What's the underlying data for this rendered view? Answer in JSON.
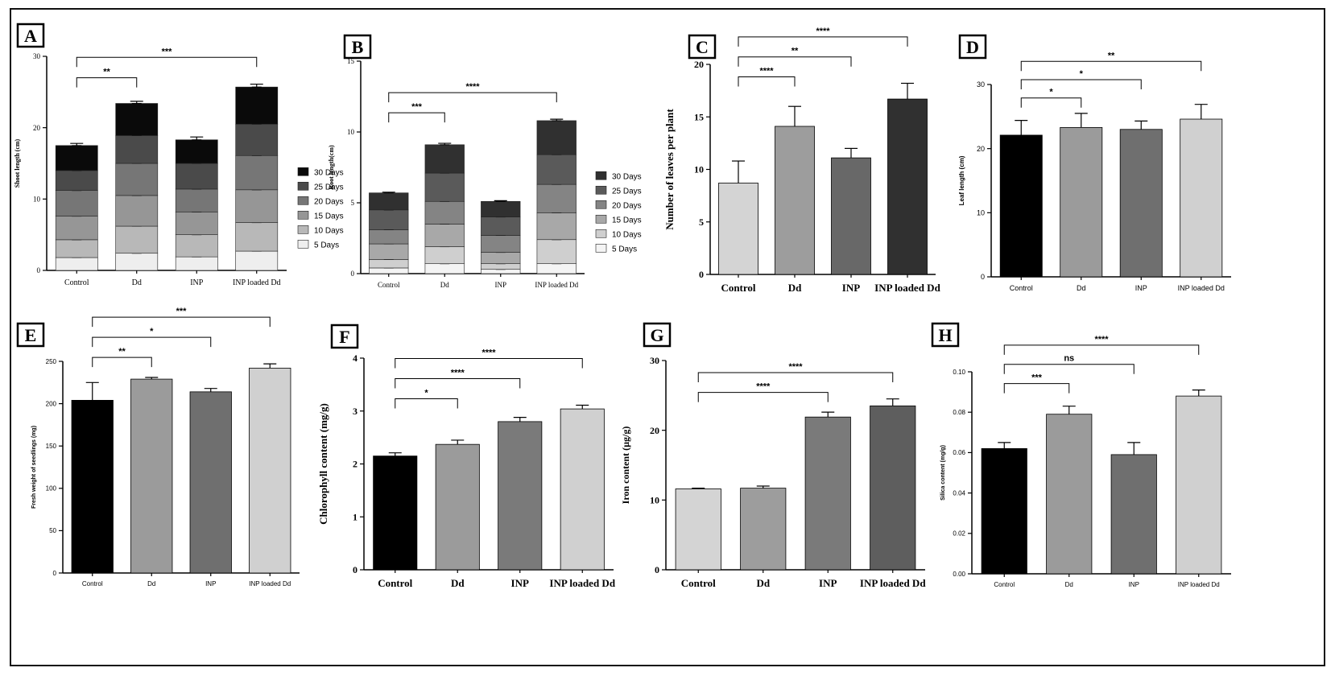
{
  "colors": {
    "black": "#000000",
    "dark": "#2b2b2b",
    "mid": "#6f6f6f",
    "light": "#d4d4d4",
    "gray": "#9b9b9b"
  },
  "chart_data": [
    {
      "id": "A",
      "panel_label": "A",
      "type": "stacked-bar",
      "ylabel": "Shoot length (cm)",
      "ylim": [
        0,
        30
      ],
      "yticks": [
        0,
        10,
        20,
        30
      ],
      "categories": [
        "Control",
        "Dd",
        "INP",
        "INP loaded Dd"
      ],
      "legend": "right",
      "series": [
        {
          "name": "5 Days",
          "color": "#eeeeee",
          "values": [
            1.8,
            2.4,
            1.9,
            2.7
          ]
        },
        {
          "name": "10 Days",
          "color": "#b8b8b8",
          "values": [
            2.5,
            3.8,
            3.1,
            4.0
          ]
        },
        {
          "name": "15 Days",
          "color": "#969696",
          "values": [
            3.3,
            4.3,
            3.2,
            4.6
          ]
        },
        {
          "name": "20 Days",
          "color": "#767676",
          "values": [
            3.6,
            4.5,
            3.2,
            4.8
          ]
        },
        {
          "name": "25 Days",
          "color": "#4a4a4a",
          "values": [
            2.8,
            3.9,
            3.6,
            4.4
          ]
        },
        {
          "name": "30 Days",
          "color": "#0a0a0a",
          "values": [
            3.5,
            4.5,
            3.3,
            5.2
          ]
        }
      ],
      "errors": [
        0.3,
        0.3,
        0.4,
        0.4
      ],
      "significance": [
        {
          "from": 0,
          "to": 1,
          "label": "**",
          "level": 1
        },
        {
          "from": 0,
          "to": 3,
          "label": "***",
          "level": 2
        }
      ]
    },
    {
      "id": "B",
      "panel_label": "B",
      "type": "stacked-bar",
      "ylabel": "Root length(cm)",
      "ylim": [
        0,
        15
      ],
      "yticks": [
        0,
        5,
        10,
        15
      ],
      "categories": [
        "Control",
        "Dd",
        "INP",
        "INP loaded Dd"
      ],
      "legend": "right",
      "series": [
        {
          "name": "5 Days",
          "color": "#f4f4f4",
          "values": [
            0.4,
            0.7,
            0.3,
            0.7
          ]
        },
        {
          "name": "10 Days",
          "color": "#cfcfcf",
          "values": [
            0.6,
            1.2,
            0.4,
            1.7
          ]
        },
        {
          "name": "15 Days",
          "color": "#a8a8a8",
          "values": [
            1.1,
            1.6,
            0.8,
            1.9
          ]
        },
        {
          "name": "20 Days",
          "color": "#848484",
          "values": [
            1.0,
            1.6,
            1.2,
            2.0
          ]
        },
        {
          "name": "25 Days",
          "color": "#5a5a5a",
          "values": [
            1.4,
            2.0,
            1.3,
            2.1
          ]
        },
        {
          "name": "30 Days",
          "color": "#303030",
          "values": [
            1.2,
            2.0,
            1.1,
            2.4
          ]
        }
      ],
      "errors": [
        0.05,
        0.1,
        0.05,
        0.1
      ],
      "significance": [
        {
          "from": 0,
          "to": 1,
          "label": "***",
          "level": 1
        },
        {
          "from": 0,
          "to": 3,
          "label": "****",
          "level": 2
        }
      ]
    },
    {
      "id": "C",
      "panel_label": "C",
      "type": "bar",
      "ylabel": "Number of leaves per plant",
      "ylim": [
        0,
        20
      ],
      "yticks": [
        0,
        5,
        10,
        15,
        20
      ],
      "categories": [
        "Control",
        "Dd",
        "INP",
        "INP loaded Dd"
      ],
      "values": [
        8.7,
        14.1,
        11.1,
        16.7
      ],
      "errors": [
        2.1,
        1.9,
        0.9,
        1.5
      ],
      "bar_colors": [
        "#d4d4d4",
        "#9d9d9d",
        "#686868",
        "#303030"
      ],
      "significance": [
        {
          "from": 0,
          "to": 1,
          "label": "****",
          "level": 1
        },
        {
          "from": 0,
          "to": 2,
          "label": "**",
          "level": 2
        },
        {
          "from": 0,
          "to": 3,
          "label": "****",
          "level": 3
        }
      ]
    },
    {
      "id": "D",
      "panel_label": "D",
      "type": "bar",
      "ylabel": "Leaf length (cm)",
      "ylim": [
        0,
        30
      ],
      "yticks": [
        0,
        10,
        20,
        30
      ],
      "categories": [
        "Control",
        "Dd",
        "INP",
        "INP loaded Dd"
      ],
      "values": [
        22.1,
        23.3,
        23.0,
        24.6
      ],
      "errors": [
        2.3,
        2.2,
        1.3,
        2.3
      ],
      "bar_colors": [
        "#000000",
        "#9b9b9b",
        "#6f6f6f",
        "#d0d0d0"
      ],
      "significance": [
        {
          "from": 0,
          "to": 1,
          "label": "*",
          "level": 1
        },
        {
          "from": 0,
          "to": 2,
          "label": "*",
          "level": 2
        },
        {
          "from": 0,
          "to": 3,
          "label": "**",
          "level": 3
        }
      ]
    },
    {
      "id": "E",
      "panel_label": "E",
      "type": "bar",
      "ylabel": "Fresh weight of seedlings (mg)",
      "ylim": [
        0,
        250
      ],
      "yticks": [
        0,
        50,
        100,
        150,
        200,
        250
      ],
      "categories": [
        "Control",
        "Dd",
        "INP",
        "INP loaded Dd"
      ],
      "values": [
        204,
        229,
        214,
        242
      ],
      "errors": [
        21,
        2,
        4,
        5
      ],
      "bar_colors": [
        "#000000",
        "#9b9b9b",
        "#6f6f6f",
        "#d0d0d0"
      ],
      "significance": [
        {
          "from": 0,
          "to": 1,
          "label": "**",
          "level": 1
        },
        {
          "from": 0,
          "to": 2,
          "label": "*",
          "level": 2
        },
        {
          "from": 0,
          "to": 3,
          "label": "***",
          "level": 3
        }
      ]
    },
    {
      "id": "F",
      "panel_label": "F",
      "type": "bar",
      "ylabel": "Chlorophyll content (mg/g)",
      "ylim": [
        0,
        4
      ],
      "yticks": [
        0,
        1,
        2,
        3,
        4
      ],
      "categories": [
        "Control",
        "Dd",
        "INP",
        "INP loaded Dd"
      ],
      "values": [
        2.15,
        2.37,
        2.8,
        3.04
      ],
      "errors": [
        0.06,
        0.08,
        0.08,
        0.07
      ],
      "bar_colors": [
        "#000000",
        "#9b9b9b",
        "#7a7a7a",
        "#d0d0d0"
      ],
      "significance": [
        {
          "from": 0,
          "to": 1,
          "label": "*",
          "level": 1
        },
        {
          "from": 0,
          "to": 2,
          "label": "****",
          "level": 2
        },
        {
          "from": 0,
          "to": 3,
          "label": "****",
          "level": 3
        }
      ]
    },
    {
      "id": "G",
      "panel_label": "G",
      "type": "bar",
      "ylabel": "Iron content (µg/g)",
      "ylim": [
        0,
        30
      ],
      "yticks": [
        0,
        10,
        20,
        30
      ],
      "categories": [
        "Control",
        "Dd",
        "INP",
        "INP loaded Dd"
      ],
      "values": [
        11.6,
        11.7,
        21.9,
        23.5
      ],
      "errors": [
        0.1,
        0.3,
        0.7,
        1.0
      ],
      "bar_colors": [
        "#d4d4d4",
        "#9d9d9d",
        "#7a7a7a",
        "#5e5e5e"
      ],
      "significance": [
        {
          "from": 0,
          "to": 2,
          "label": "****",
          "level": 1
        },
        {
          "from": 0,
          "to": 3,
          "label": "****",
          "level": 2
        }
      ]
    },
    {
      "id": "H",
      "panel_label": "H",
      "type": "bar",
      "ylabel": "Silica content (mg/g)",
      "ylim": [
        0,
        0.1
      ],
      "yticks": [
        0.0,
        0.02,
        0.04,
        0.06,
        0.08,
        0.1
      ],
      "ytick_labels": [
        "0.00",
        "0.02",
        "0.04",
        "0.06",
        "0.08",
        "0.10"
      ],
      "categories": [
        "Control",
        "Dd",
        "INP",
        "INP loaded Dd"
      ],
      "values": [
        0.062,
        0.079,
        0.059,
        0.088
      ],
      "errors": [
        0.003,
        0.004,
        0.006,
        0.003
      ],
      "bar_colors": [
        "#000000",
        "#9b9b9b",
        "#6f6f6f",
        "#d0d0d0"
      ],
      "significance": [
        {
          "from": 0,
          "to": 1,
          "label": "***",
          "level": 1
        },
        {
          "from": 0,
          "to": 2,
          "label": "ns",
          "level": 2
        },
        {
          "from": 0,
          "to": 3,
          "label": "****",
          "level": 3
        }
      ]
    }
  ]
}
